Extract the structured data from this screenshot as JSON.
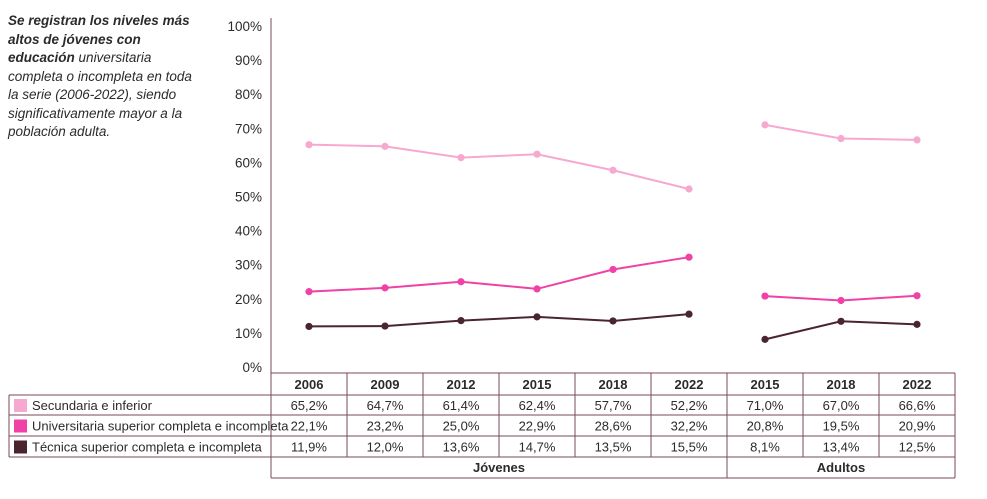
{
  "note": {
    "bold1": "Se registran los niveles más altos de jóvenes con educación",
    "rest": "universitaria completa o incompleta en toda la serie (2006-2022), siendo significativamente mayor a la población adulta."
  },
  "colors": {
    "secundaria": "#f7a8cf",
    "universitaria": "#f041a6",
    "tecnica": "#4a2530",
    "border": "#7a4a58"
  },
  "chart_data": {
    "type": "line",
    "y_ticks": [
      "0%",
      "10%",
      "20%",
      "30%",
      "40%",
      "50%",
      "60%",
      "70%",
      "80%",
      "90%",
      "100%"
    ],
    "ylim": [
      0,
      100
    ],
    "groups": [
      {
        "name": "Jóvenes",
        "years": [
          "2006",
          "2009",
          "2012",
          "2015",
          "2018",
          "2022"
        ]
      },
      {
        "name": "Adultos",
        "years": [
          "2015",
          "2018",
          "2022"
        ]
      }
    ],
    "series": [
      {
        "name": "Secundaria e inferior",
        "color_key": "secundaria",
        "values": [
          65.2,
          64.7,
          61.4,
          62.4,
          57.7,
          52.2,
          71.0,
          67.0,
          66.6
        ],
        "labels": [
          "65,2%",
          "64,7%",
          "61,4%",
          "62,4%",
          "57,7%",
          "52,2%",
          "71,0%",
          "67,0%",
          "66,6%"
        ]
      },
      {
        "name": "Universitaria superior completa e incompleta",
        "color_key": "universitaria",
        "values": [
          22.1,
          23.2,
          25.0,
          22.9,
          28.6,
          32.2,
          20.8,
          19.5,
          20.9
        ],
        "labels": [
          "22,1%",
          "23,2%",
          "25,0%",
          "22,9%",
          "28,6%",
          "32,2%",
          "20,8%",
          "19,5%",
          "20,9%"
        ]
      },
      {
        "name": "Técnica superior completa e incompleta",
        "color_key": "tecnica",
        "values": [
          11.9,
          12.0,
          13.6,
          14.7,
          13.5,
          15.5,
          8.1,
          13.4,
          12.5
        ],
        "labels": [
          "11,9%",
          "12,0%",
          "13,6%",
          "14,7%",
          "13,5%",
          "15,5%",
          "8,1%",
          "13,4%",
          "12,5%"
        ]
      }
    ]
  }
}
